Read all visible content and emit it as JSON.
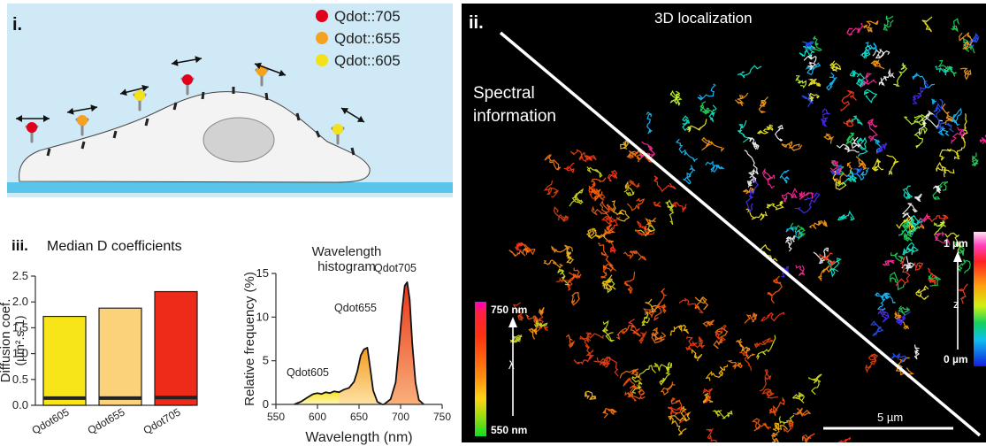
{
  "panels": {
    "i": {
      "label": "i.",
      "legend": [
        {
          "name": "Qdot::705",
          "color": "#e0001b"
        },
        {
          "name": "Qdot::655",
          "color": "#f4a21f"
        },
        {
          "name": "Qdot::605",
          "color": "#f3e21a"
        }
      ],
      "colors": {
        "background": "#cfe9f6",
        "substrate": "#5ac4ea",
        "cell": "#f3f3f3"
      }
    },
    "ii": {
      "label": "ii.",
      "title": "3D localization",
      "left_label_line1": "Spectral",
      "left_label_line2": "information",
      "wavelength_scale": {
        "top": "750 nm",
        "bottom": "550 nm",
        "symbol": "λ"
      },
      "z_scale": {
        "top": "1 µm",
        "bottom": "0 µm",
        "symbol": "z"
      },
      "scalebar": "5 µm"
    },
    "iii": {
      "label": "iii.",
      "title": "Median D coefficients"
    }
  },
  "chart_data": [
    {
      "type": "bar",
      "title": "Median D coefficients",
      "ylabel_line1": "Diffusion coef.",
      "ylabel_line2": "(µm².s-1)",
      "categories": [
        "Qdot605",
        "Qdot655",
        "Qdot705"
      ],
      "values": [
        1.72,
        1.88,
        2.2
      ],
      "lower_values": [
        0.14,
        0.14,
        0.15
      ],
      "colors": [
        "#f7e51a",
        "#fbd27a",
        "#ee2a18"
      ],
      "ylim": [
        0,
        2.5
      ],
      "yticks": [
        "0.0",
        "0.5",
        "1.0",
        "1.5",
        "2.0",
        "2.5"
      ]
    },
    {
      "type": "area",
      "title_line1": "Wavelength",
      "title_line2": "histogram",
      "xlabel": "Wavelength (nm)",
      "ylabel": "Relative frequency (%)",
      "xlim": [
        550,
        750
      ],
      "ylim": [
        0,
        15
      ],
      "xticks": [
        "550",
        "600",
        "650",
        "700",
        "750"
      ],
      "yticks": [
        "0",
        "5",
        "10",
        "15"
      ],
      "series": [
        {
          "name": "Qdot605",
          "color": "#f5e31d",
          "x": [
            572,
            580,
            588,
            595,
            600,
            605,
            610,
            615,
            620,
            626
          ],
          "y": [
            0,
            0.3,
            0.8,
            1.2,
            1.3,
            1.2,
            1.4,
            1.3,
            1.5,
            1.4
          ]
        },
        {
          "name": "Qdot655",
          "color": "#f6b43a",
          "x": [
            626,
            632,
            638,
            644,
            648,
            652,
            656,
            660,
            663,
            667,
            672,
            678
          ],
          "y": [
            1.4,
            1.7,
            1.9,
            2.6,
            3.8,
            5.6,
            6.3,
            6.5,
            4.5,
            1.6,
            0.3,
            0
          ]
        },
        {
          "name": "Qdot705",
          "color": "#ee5a1e",
          "x": [
            680,
            688,
            694,
            698,
            702,
            705,
            708,
            711,
            714,
            718,
            722,
            728
          ],
          "y": [
            0,
            0.6,
            2.5,
            6.5,
            11.0,
            13.6,
            14.0,
            12.0,
            7.0,
            2.5,
            0.5,
            0
          ]
        }
      ],
      "annotations": [
        "Qdot605",
        "Qdot655",
        "Qdot705"
      ]
    }
  ]
}
